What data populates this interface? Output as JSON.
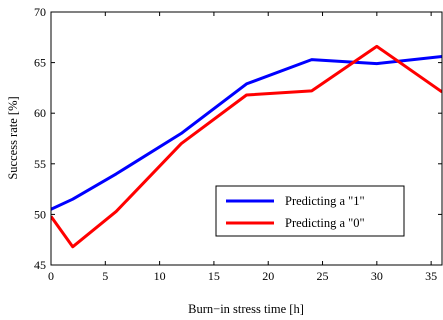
{
  "chart_data": {
    "type": "line",
    "title": "",
    "xlabel": "Burn−in stress time [h]",
    "ylabel": "Success rate [%]",
    "xlim": [
      0,
      36
    ],
    "ylim": [
      45,
      70
    ],
    "xticks": [
      0,
      5,
      10,
      15,
      20,
      25,
      30,
      35
    ],
    "yticks": [
      45,
      50,
      55,
      60,
      65,
      70
    ],
    "grid": false,
    "legend": "center-right",
    "series": [
      {
        "name": "Predicting a \"1\"",
        "color": "#0000ff",
        "x": [
          0,
          2,
          6,
          12,
          18,
          24,
          30,
          36
        ],
        "y": [
          50.5,
          51.5,
          54.0,
          58.0,
          62.9,
          65.3,
          64.9,
          65.6
        ]
      },
      {
        "name": "Predicting a \"0\"",
        "color": "#ff0000",
        "x": [
          0,
          2,
          6,
          12,
          18,
          24,
          30,
          36
        ],
        "y": [
          49.8,
          46.8,
          50.3,
          57.0,
          61.8,
          62.2,
          66.6,
          62.1
        ]
      }
    ]
  }
}
